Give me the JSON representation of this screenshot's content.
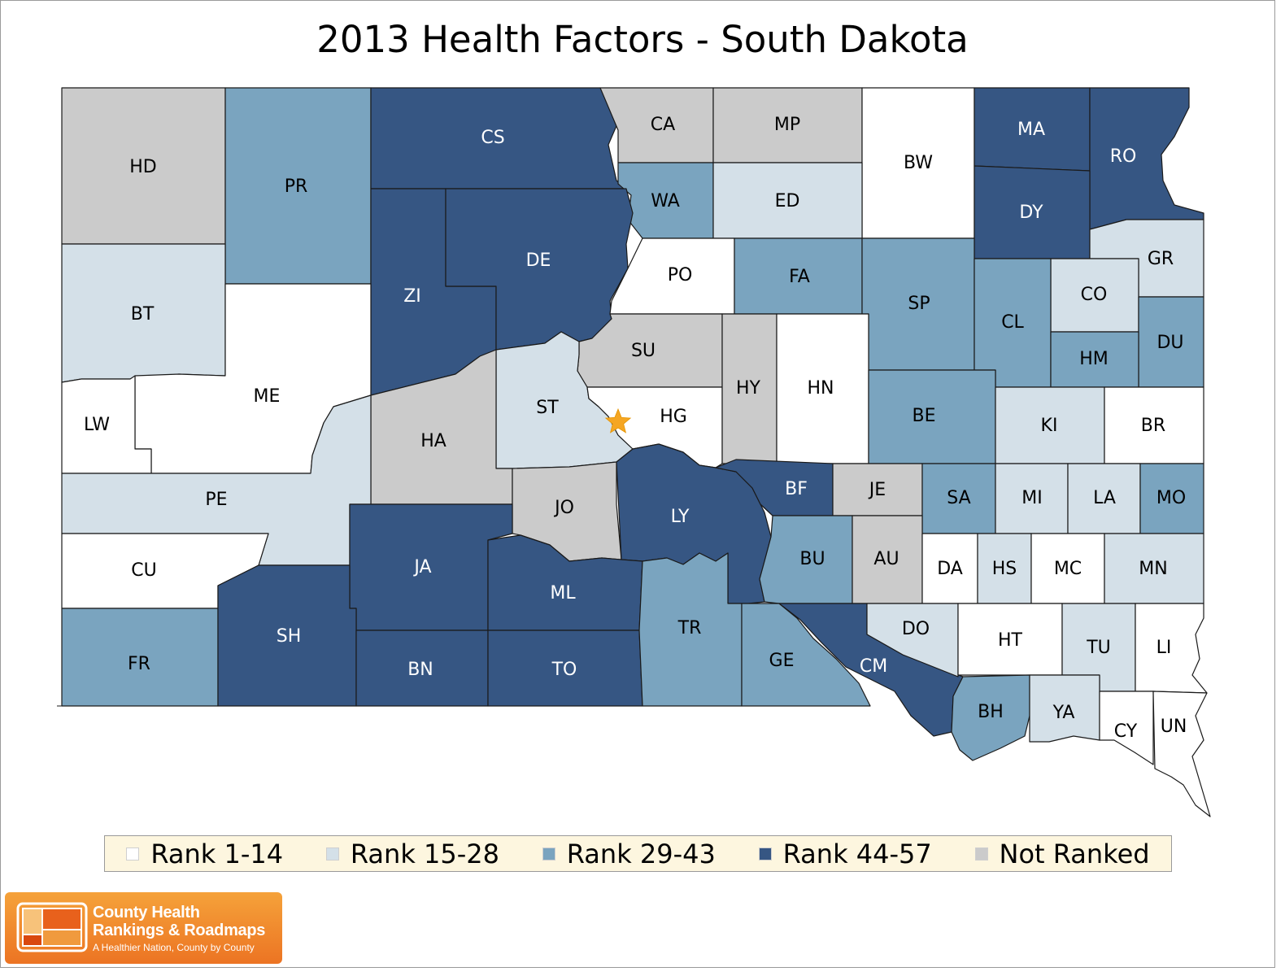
{
  "title": "2013 Health Factors - South Dakota",
  "colors": {
    "rank_1_14": "#ffffff",
    "rank_15_28": "#d4e0e8",
    "rank_29_43": "#7aa4bf",
    "rank_44_57": "#365683",
    "not_ranked": "#cbcbcb",
    "star": "#f5a623"
  },
  "legend": [
    {
      "key": "rank_1_14",
      "label": "Rank 1-14"
    },
    {
      "key": "rank_15_28",
      "label": "Rank 15-28"
    },
    {
      "key": "rank_29_43",
      "label": "Rank 29-43"
    },
    {
      "key": "rank_44_57",
      "label": "Rank 44-57"
    },
    {
      "key": "not_ranked",
      "label": "Not Ranked"
    }
  ],
  "counties": [
    {
      "abbr": "HD",
      "rank": "not_ranked"
    },
    {
      "abbr": "PR",
      "rank": "rank_29_43"
    },
    {
      "abbr": "CS",
      "rank": "rank_44_57"
    },
    {
      "abbr": "CA",
      "rank": "not_ranked"
    },
    {
      "abbr": "MP",
      "rank": "not_ranked"
    },
    {
      "abbr": "BW",
      "rank": "rank_1_14"
    },
    {
      "abbr": "MA",
      "rank": "rank_44_57"
    },
    {
      "abbr": "RO",
      "rank": "rank_44_57"
    },
    {
      "abbr": "WA",
      "rank": "rank_29_43"
    },
    {
      "abbr": "ED",
      "rank": "rank_15_28"
    },
    {
      "abbr": "DY",
      "rank": "rank_44_57"
    },
    {
      "abbr": "BT",
      "rank": "rank_15_28"
    },
    {
      "abbr": "ZI",
      "rank": "rank_44_57"
    },
    {
      "abbr": "DE",
      "rank": "rank_44_57"
    },
    {
      "abbr": "PO",
      "rank": "rank_1_14"
    },
    {
      "abbr": "FA",
      "rank": "rank_29_43"
    },
    {
      "abbr": "SP",
      "rank": "rank_29_43"
    },
    {
      "abbr": "GR",
      "rank": "rank_15_28"
    },
    {
      "abbr": "CO",
      "rank": "rank_15_28"
    },
    {
      "abbr": "CL",
      "rank": "rank_29_43"
    },
    {
      "abbr": "DU",
      "rank": "rank_29_43"
    },
    {
      "abbr": "HM",
      "rank": "rank_29_43"
    },
    {
      "abbr": "ME",
      "rank": "rank_1_14"
    },
    {
      "abbr": "LW",
      "rank": "rank_1_14"
    },
    {
      "abbr": "SU",
      "rank": "not_ranked"
    },
    {
      "abbr": "ST",
      "rank": "rank_15_28"
    },
    {
      "abbr": "HG",
      "rank": "rank_1_14"
    },
    {
      "abbr": "HY",
      "rank": "not_ranked"
    },
    {
      "abbr": "HN",
      "rank": "rank_1_14"
    },
    {
      "abbr": "BE",
      "rank": "rank_29_43"
    },
    {
      "abbr": "KI",
      "rank": "rank_15_28"
    },
    {
      "abbr": "BR",
      "rank": "rank_1_14"
    },
    {
      "abbr": "HA",
      "rank": "not_ranked"
    },
    {
      "abbr": "PE",
      "rank": "rank_15_28"
    },
    {
      "abbr": "JO",
      "rank": "not_ranked"
    },
    {
      "abbr": "LY",
      "rank": "rank_44_57"
    },
    {
      "abbr": "BF",
      "rank": "rank_44_57"
    },
    {
      "abbr": "JE",
      "rank": "not_ranked"
    },
    {
      "abbr": "SA",
      "rank": "rank_29_43"
    },
    {
      "abbr": "MI",
      "rank": "rank_15_28"
    },
    {
      "abbr": "LA",
      "rank": "rank_15_28"
    },
    {
      "abbr": "MO",
      "rank": "rank_29_43"
    },
    {
      "abbr": "CU",
      "rank": "rank_1_14"
    },
    {
      "abbr": "JA",
      "rank": "rank_44_57"
    },
    {
      "abbr": "ML",
      "rank": "rank_44_57"
    },
    {
      "abbr": "BU",
      "rank": "rank_29_43"
    },
    {
      "abbr": "AU",
      "rank": "not_ranked"
    },
    {
      "abbr": "DA",
      "rank": "rank_1_14"
    },
    {
      "abbr": "HS",
      "rank": "rank_15_28"
    },
    {
      "abbr": "MC",
      "rank": "rank_1_14"
    },
    {
      "abbr": "MN",
      "rank": "rank_15_28"
    },
    {
      "abbr": "FR",
      "rank": "rank_29_43"
    },
    {
      "abbr": "SH",
      "rank": "rank_44_57"
    },
    {
      "abbr": "BN",
      "rank": "rank_44_57"
    },
    {
      "abbr": "TO",
      "rank": "rank_44_57"
    },
    {
      "abbr": "TR",
      "rank": "rank_29_43"
    },
    {
      "abbr": "GE",
      "rank": "rank_29_43"
    },
    {
      "abbr": "CM",
      "rank": "rank_44_57"
    },
    {
      "abbr": "DO",
      "rank": "rank_15_28"
    },
    {
      "abbr": "HT",
      "rank": "rank_1_14"
    },
    {
      "abbr": "TU",
      "rank": "rank_15_28"
    },
    {
      "abbr": "LI",
      "rank": "rank_1_14"
    },
    {
      "abbr": "BH",
      "rank": "rank_29_43"
    },
    {
      "abbr": "YA",
      "rank": "rank_15_28"
    },
    {
      "abbr": "CY",
      "rank": "rank_1_14"
    },
    {
      "abbr": "UN",
      "rank": "rank_1_14"
    }
  ],
  "marker": {
    "icon": "star-icon"
  },
  "logo": {
    "line1": "County Health",
    "line2": "Rankings & Roadmaps",
    "tagline": "A Healthier Nation, County by County"
  }
}
